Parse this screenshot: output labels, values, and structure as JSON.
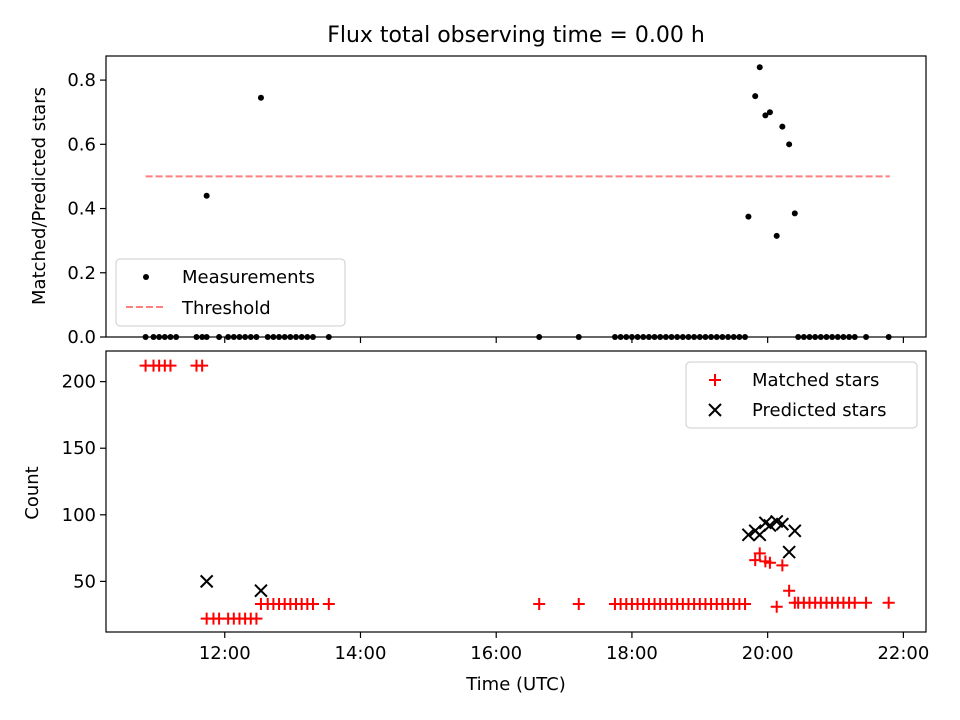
{
  "chart_data": [
    {
      "type": "scatter",
      "title": "Flux total observing time = 0.00 h",
      "xlabel": "",
      "ylabel": "Matched/Predicted stars",
      "xlim": [
        "10:15",
        "22:20"
      ],
      "ylim": [
        0,
        0.875
      ],
      "yticks": [
        "0.0",
        "0.2",
        "0.4",
        "0.6",
        "0.8"
      ],
      "xticks": [
        "12:00",
        "14:00",
        "16:00",
        "18:00",
        "20:00",
        "22:00"
      ],
      "xticklabels_shown": false,
      "legend_position": "lower left",
      "series": [
        {
          "name": "Measurements",
          "kind": "points",
          "color": "#000000",
          "points": [
            [
              "10:50",
              0
            ],
            [
              "10:57",
              0
            ],
            [
              "11:02",
              0
            ],
            [
              "11:07",
              0
            ],
            [
              "11:12",
              0
            ],
            [
              "11:17",
              0
            ],
            [
              "11:35",
              0
            ],
            [
              "11:40",
              0
            ],
            [
              "11:44",
              0
            ],
            [
              "11:44",
              0.44
            ],
            [
              "11:55",
              0
            ],
            [
              "12:03",
              0
            ],
            [
              "12:08",
              0
            ],
            [
              "12:13",
              0
            ],
            [
              "12:18",
              0
            ],
            [
              "12:23",
              0
            ],
            [
              "12:28",
              0
            ],
            [
              "12:32",
              0.745
            ],
            [
              "12:38",
              0
            ],
            [
              "12:43",
              0
            ],
            [
              "12:48",
              0
            ],
            [
              "12:53",
              0
            ],
            [
              "12:58",
              0
            ],
            [
              "13:03",
              0
            ],
            [
              "13:08",
              0
            ],
            [
              "13:13",
              0
            ],
            [
              "13:18",
              0
            ],
            [
              "13:32",
              0
            ],
            [
              "16:38",
              0
            ],
            [
              "17:13",
              0
            ],
            [
              "17:45",
              0
            ],
            [
              "17:50",
              0
            ],
            [
              "17:55",
              0
            ],
            [
              "18:00",
              0
            ],
            [
              "18:05",
              0
            ],
            [
              "18:10",
              0
            ],
            [
              "18:15",
              0
            ],
            [
              "18:20",
              0
            ],
            [
              "18:25",
              0
            ],
            [
              "18:30",
              0
            ],
            [
              "18:35",
              0
            ],
            [
              "18:40",
              0
            ],
            [
              "18:45",
              0
            ],
            [
              "18:50",
              0
            ],
            [
              "18:55",
              0
            ],
            [
              "19:00",
              0
            ],
            [
              "19:05",
              0
            ],
            [
              "19:10",
              0
            ],
            [
              "19:15",
              0
            ],
            [
              "19:20",
              0
            ],
            [
              "19:25",
              0
            ],
            [
              "19:30",
              0
            ],
            [
              "19:35",
              0
            ],
            [
              "19:40",
              0
            ],
            [
              "19:43",
              0.375
            ],
            [
              "19:49",
              0.75
            ],
            [
              "19:53",
              0.84
            ],
            [
              "19:58",
              0.69
            ],
            [
              "20:02",
              0.7
            ],
            [
              "20:08",
              0.315
            ],
            [
              "20:13",
              0.655
            ],
            [
              "20:19",
              0.6
            ],
            [
              "20:24",
              0.385
            ],
            [
              "20:27",
              0
            ],
            [
              "20:32",
              0
            ],
            [
              "20:37",
              0
            ],
            [
              "20:42",
              0
            ],
            [
              "20:47",
              0
            ],
            [
              "20:52",
              0
            ],
            [
              "20:57",
              0
            ],
            [
              "21:02",
              0
            ],
            [
              "21:07",
              0
            ],
            [
              "21:12",
              0
            ],
            [
              "21:17",
              0
            ],
            [
              "21:27",
              0
            ],
            [
              "21:47",
              0
            ]
          ]
        },
        {
          "name": "Threshold",
          "kind": "dashed-line",
          "color": "#ff7f7f",
          "points": [
            [
              "10:50",
              0.5
            ],
            [
              "21:48",
              0.5
            ]
          ]
        }
      ]
    },
    {
      "type": "scatter",
      "title": "",
      "xlabel": "Time (UTC)",
      "ylabel": "Count",
      "xlim": [
        "10:15",
        "22:20"
      ],
      "ylim": [
        12,
        223
      ],
      "yticks": [
        "50",
        "100",
        "150",
        "200"
      ],
      "xticks": [
        "12:00",
        "14:00",
        "16:00",
        "18:00",
        "20:00",
        "22:00"
      ],
      "legend_position": "upper right",
      "series": [
        {
          "name": "Matched stars",
          "marker": "plus",
          "color": "#ff0000",
          "points": [
            [
              "10:50",
              212
            ],
            [
              "10:57",
              212
            ],
            [
              "11:02",
              212
            ],
            [
              "11:07",
              212
            ],
            [
              "11:12",
              212
            ],
            [
              "11:35",
              212
            ],
            [
              "11:40",
              212
            ],
            [
              "11:44",
              22
            ],
            [
              "11:50",
              22
            ],
            [
              "11:55",
              22
            ],
            [
              "12:03",
              22
            ],
            [
              "12:08",
              22
            ],
            [
              "12:13",
              22
            ],
            [
              "12:18",
              22
            ],
            [
              "12:23",
              22
            ],
            [
              "12:28",
              22
            ],
            [
              "12:32",
              33
            ],
            [
              "12:38",
              33
            ],
            [
              "12:43",
              33
            ],
            [
              "12:48",
              33
            ],
            [
              "12:53",
              33
            ],
            [
              "12:58",
              33
            ],
            [
              "13:03",
              33
            ],
            [
              "13:08",
              33
            ],
            [
              "13:13",
              33
            ],
            [
              "13:18",
              33
            ],
            [
              "13:32",
              33
            ],
            [
              "16:38",
              33
            ],
            [
              "17:13",
              33
            ],
            [
              "17:45",
              33
            ],
            [
              "17:50",
              33
            ],
            [
              "17:55",
              33
            ],
            [
              "18:00",
              33
            ],
            [
              "18:05",
              33
            ],
            [
              "18:10",
              33
            ],
            [
              "18:15",
              33
            ],
            [
              "18:20",
              33
            ],
            [
              "18:25",
              33
            ],
            [
              "18:30",
              33
            ],
            [
              "18:35",
              33
            ],
            [
              "18:40",
              33
            ],
            [
              "18:45",
              33
            ],
            [
              "18:50",
              33
            ],
            [
              "18:55",
              33
            ],
            [
              "19:00",
              33
            ],
            [
              "19:05",
              33
            ],
            [
              "19:10",
              33
            ],
            [
              "19:15",
              33
            ],
            [
              "19:20",
              33
            ],
            [
              "19:25",
              33
            ],
            [
              "19:30",
              33
            ],
            [
              "19:35",
              33
            ],
            [
              "19:40",
              33
            ],
            [
              "19:49",
              66
            ],
            [
              "19:53",
              71
            ],
            [
              "19:58",
              65
            ],
            [
              "20:02",
              64
            ],
            [
              "20:08",
              31
            ],
            [
              "20:13",
              62
            ],
            [
              "20:19",
              43
            ],
            [
              "20:24",
              34
            ],
            [
              "20:27",
              34
            ],
            [
              "20:32",
              34
            ],
            [
              "20:37",
              34
            ],
            [
              "20:42",
              34
            ],
            [
              "20:47",
              34
            ],
            [
              "20:52",
              34
            ],
            [
              "20:57",
              34
            ],
            [
              "21:02",
              34
            ],
            [
              "21:07",
              34
            ],
            [
              "21:12",
              34
            ],
            [
              "21:17",
              34
            ],
            [
              "21:27",
              34
            ],
            [
              "21:47",
              34
            ]
          ]
        },
        {
          "name": "Predicted stars",
          "marker": "x",
          "color": "#000000",
          "points": [
            [
              "11:44",
              50
            ],
            [
              "12:32",
              43
            ],
            [
              "19:43",
              85
            ],
            [
              "19:49",
              88
            ],
            [
              "19:53",
              85
            ],
            [
              "19:58",
              94
            ],
            [
              "20:02",
              92
            ],
            [
              "20:08",
              95
            ],
            [
              "20:13",
              93
            ],
            [
              "20:19",
              72
            ],
            [
              "20:24",
              88
            ]
          ]
        }
      ]
    }
  ]
}
